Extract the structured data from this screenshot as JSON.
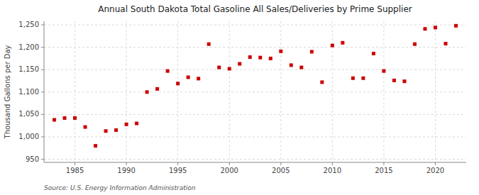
{
  "chart_data": {
    "type": "scatter",
    "title": "Annual South Dakota Total Gasoline All Sales/Deliveries by Prime Supplier",
    "ylabel": "Thousand Gallons per Day",
    "source": "Source: U.S. Energy Information Administration",
    "color": "#cc0000",
    "marker": "square",
    "grid": true,
    "xlim": [
      1982.0,
      2023.0
    ],
    "xticks": [
      1985,
      1990,
      1995,
      2000,
      2005,
      2010,
      2015,
      2020
    ],
    "ylim": [
      943,
      1258
    ],
    "yticks": [
      950,
      {
        "value": 1000,
        "label": "1,000"
      },
      {
        "value": 1050,
        "label": "1,050"
      },
      {
        "value": 1100,
        "label": "1,100"
      },
      {
        "value": 1150,
        "label": "1,150"
      },
      {
        "value": 1200,
        "label": "1,200"
      },
      {
        "value": 1250,
        "label": "1,250"
      }
    ],
    "x": [
      1983,
      1984,
      1985,
      1986,
      1987,
      1988,
      1989,
      1990,
      1991,
      1992,
      1993,
      1994,
      1995,
      1996,
      1997,
      1998,
      1999,
      2000,
      2001,
      2002,
      2003,
      2004,
      2005,
      2006,
      2007,
      2008,
      2009,
      2010,
      2011,
      2012,
      2013,
      2014,
      2015,
      2016,
      2017,
      2018,
      2019,
      2020,
      2021,
      2022
    ],
    "values": [
      1038,
      1042,
      1042,
      1022,
      980,
      1013,
      1015,
      1028,
      1030,
      1100,
      1107,
      1147,
      1119,
      1133,
      1130,
      1207,
      1155,
      1152,
      1163,
      1178,
      1177,
      1175,
      1191,
      1160,
      1155,
      1190,
      1122,
      1204,
      1210,
      1131,
      1131,
      1186,
      1147,
      1126,
      1124,
      1207,
      1241,
      1244,
      1208,
      1248
    ]
  }
}
